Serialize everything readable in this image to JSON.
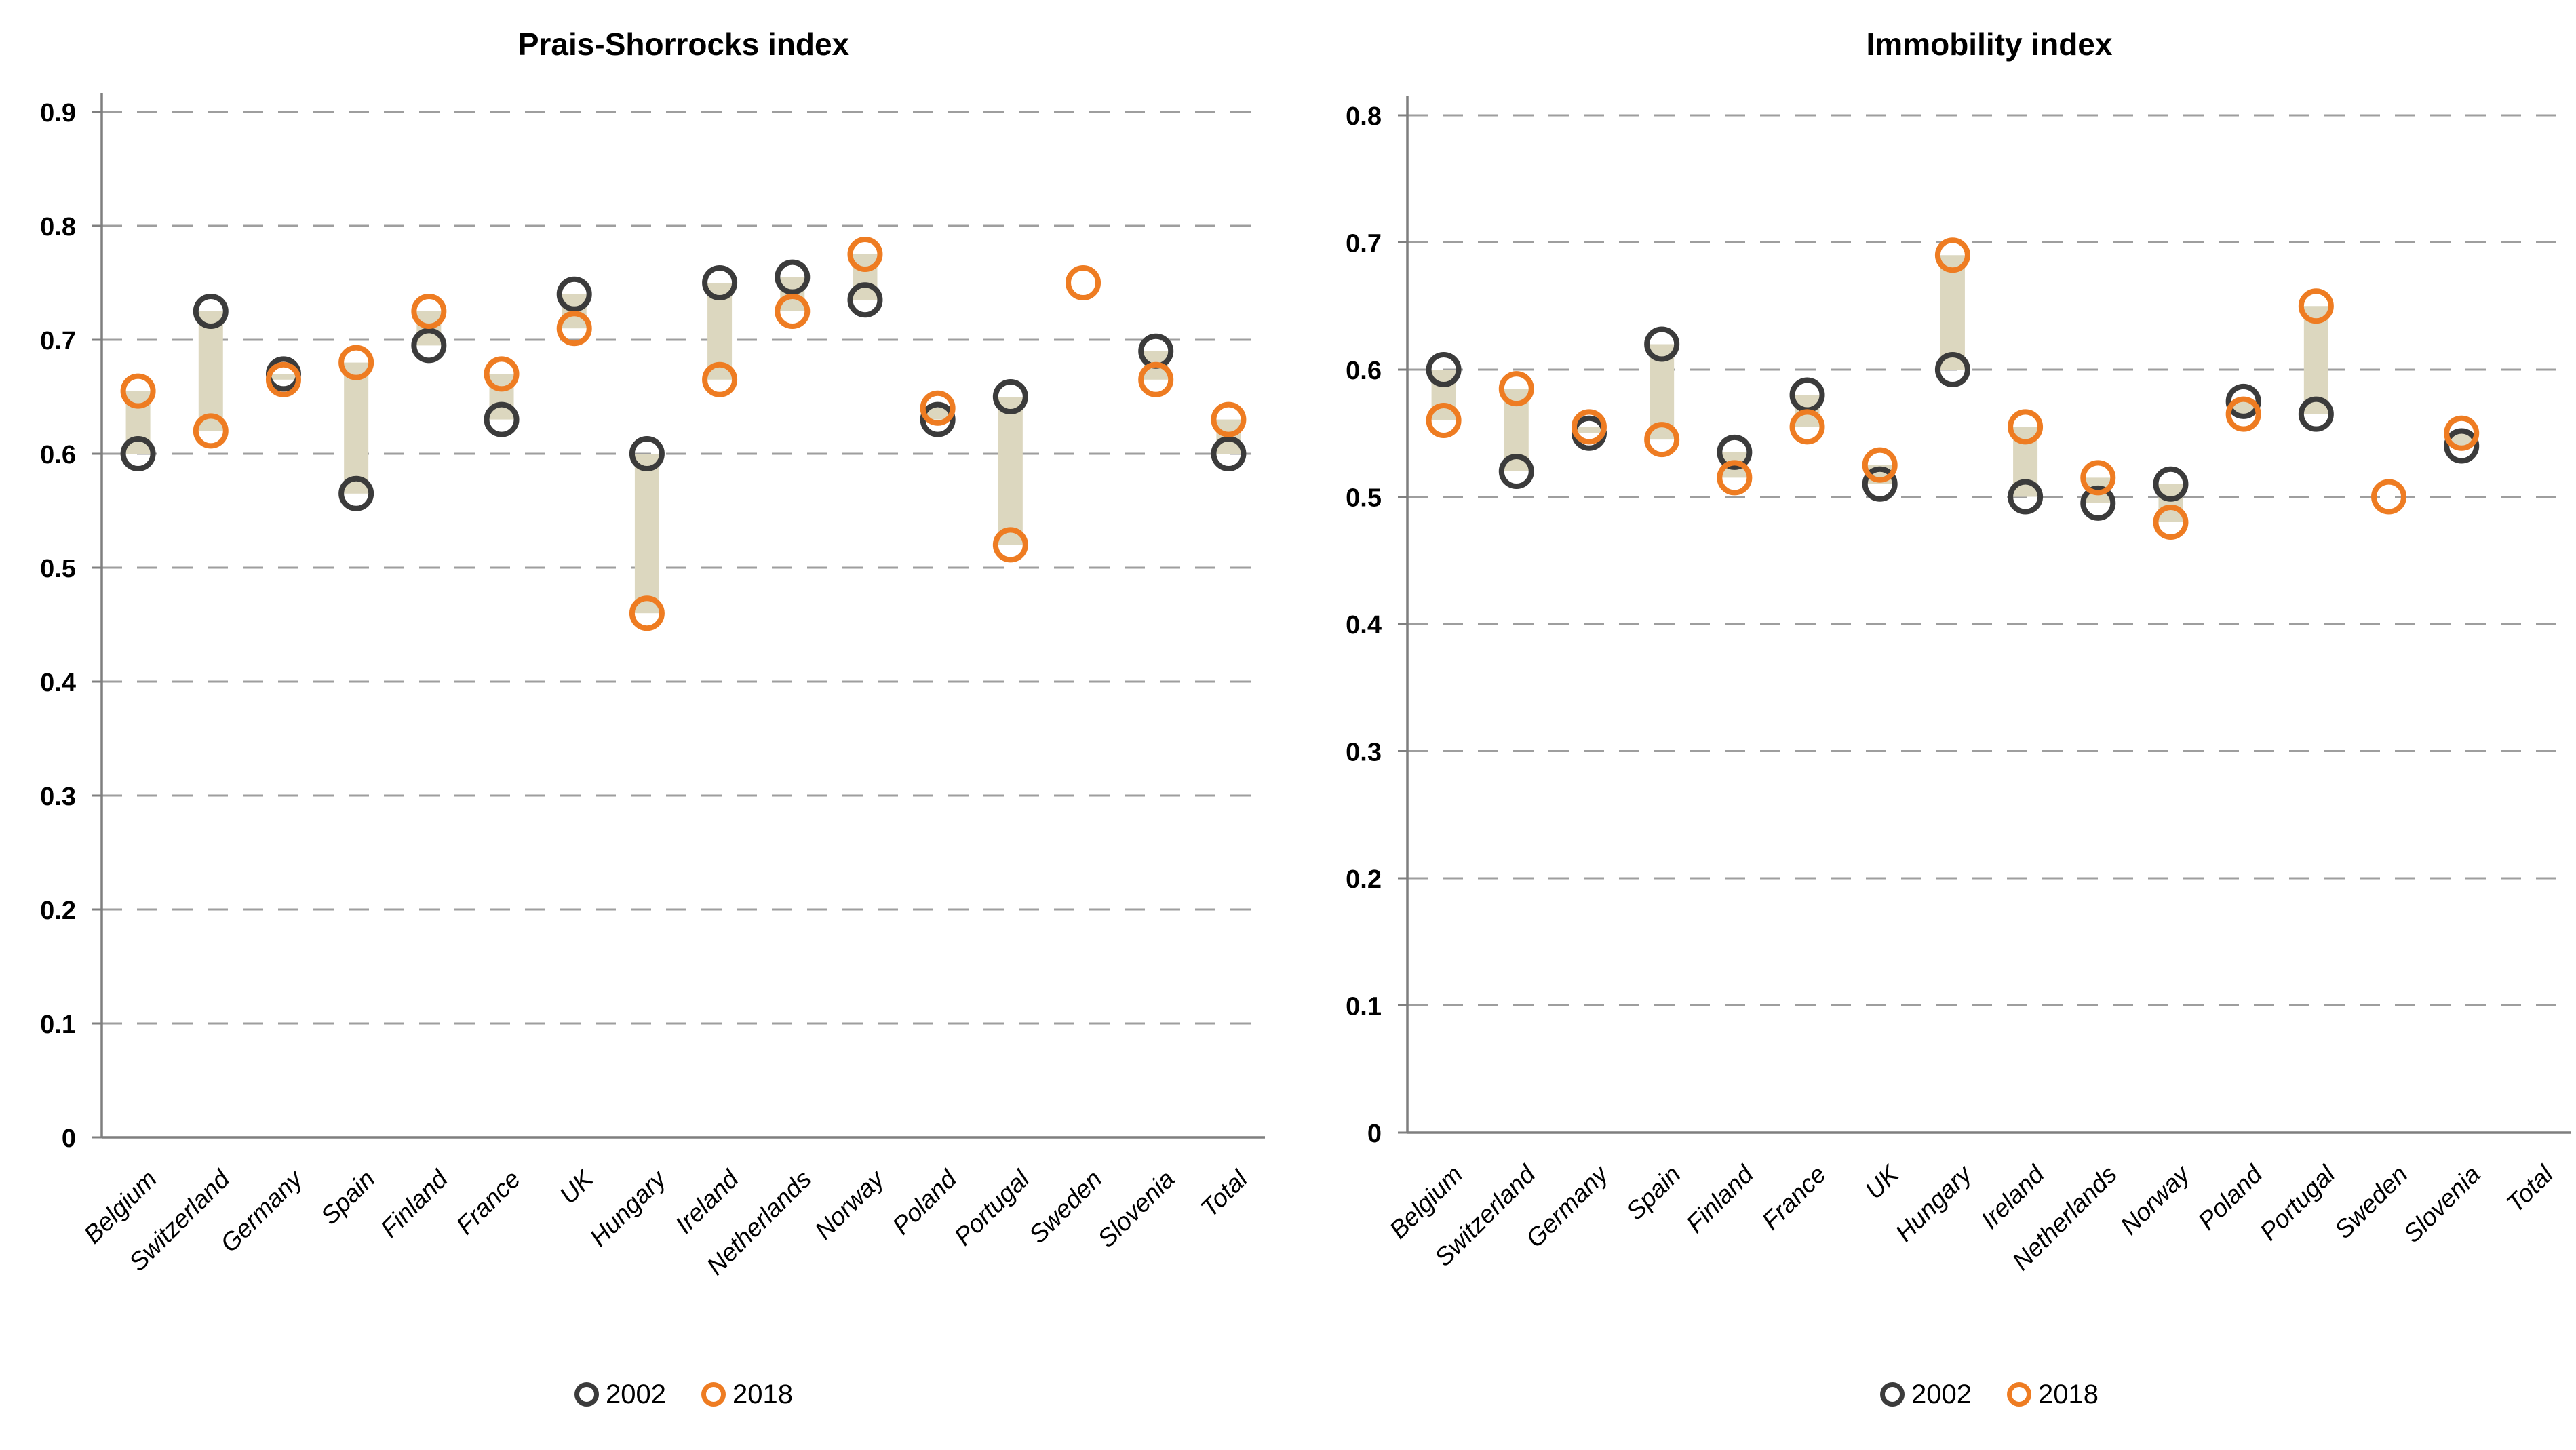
{
  "colors": {
    "series_2002": "#3B3B3B",
    "series_2018": "#EE7C22",
    "connector": "#DCD7BF",
    "gridline": "#9E9E9E",
    "axis": "#7F7F7F",
    "text": "#000000",
    "background": "#FFFFFF"
  },
  "legend": {
    "label_2002": "2002",
    "label_2018": "2018"
  },
  "chart_data": [
    {
      "type": "scatter",
      "subtype": "dumbbell",
      "title": "Prais-Shorrocks index",
      "xlabel": "",
      "ylabel": "",
      "ylim": [
        0,
        0.9
      ],
      "yticks": [
        "0",
        "0.1",
        "0.2",
        "0.3",
        "0.4",
        "0.5",
        "0.6",
        "0.7",
        "0.8",
        "0.9"
      ],
      "grid": "dashed-horizontal",
      "legend_position": "bottom-center",
      "categories": [
        "Belgium",
        "Switzerland",
        "Germany",
        "Spain",
        "Finland",
        "France",
        "UK",
        "Hungary",
        "Ireland",
        "Netherlands",
        "Norway",
        "Poland",
        "Portugal",
        "Sweden",
        "Slovenia",
        "Total"
      ],
      "series": [
        {
          "name": "2002",
          "values": [
            0.6,
            0.725,
            0.67,
            0.565,
            0.695,
            0.63,
            0.74,
            0.6,
            0.75,
            0.755,
            0.735,
            0.63,
            0.65,
            null,
            0.69,
            0.6
          ]
        },
        {
          "name": "2018",
          "values": [
            0.655,
            0.62,
            0.665,
            0.68,
            0.725,
            0.67,
            0.71,
            0.46,
            0.665,
            0.725,
            0.775,
            0.64,
            0.52,
            0.75,
            0.665,
            0.63
          ]
        }
      ]
    },
    {
      "type": "scatter",
      "subtype": "dumbbell",
      "title": "Immobility index",
      "xlabel": "",
      "ylabel": "",
      "ylim": [
        0,
        0.8
      ],
      "yticks": [
        "0",
        "0.1",
        "0.2",
        "0.3",
        "0.4",
        "0.5",
        "0.6",
        "0.7",
        "0.8"
      ],
      "grid": "dashed-horizontal",
      "legend_position": "bottom-center",
      "categories": [
        "Belgium",
        "Switzerland",
        "Germany",
        "Spain",
        "Finland",
        "France",
        "UK",
        "Hungary",
        "Ireland",
        "Netherlands",
        "Norway",
        "Poland",
        "Portugal",
        "Sweden",
        "Slovenia",
        "Total"
      ],
      "series": [
        {
          "name": "2002",
          "values": [
            0.6,
            0.52,
            0.55,
            0.62,
            0.535,
            0.58,
            0.51,
            0.6,
            0.5,
            0.495,
            0.51,
            0.575,
            0.565,
            null,
            0.54,
            null
          ]
        },
        {
          "name": "2018",
          "values": [
            0.56,
            0.585,
            0.555,
            0.545,
            0.515,
            0.555,
            0.525,
            0.69,
            0.555,
            0.515,
            0.48,
            0.565,
            0.65,
            0.5,
            0.55,
            null
          ]
        }
      ]
    }
  ]
}
